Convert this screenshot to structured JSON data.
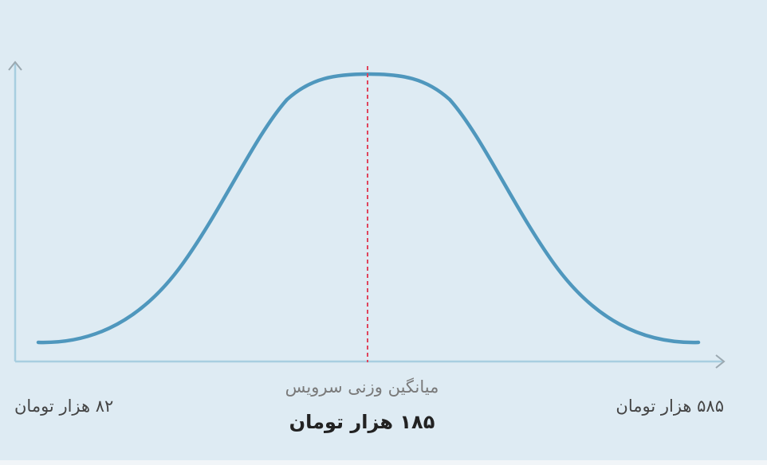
{
  "labels": {
    "min": "۸۲ هزار تومان",
    "caption": "میانگین وزنی سرویس",
    "average": "۱۸۵ هزار تومان",
    "max": "۵۸۵ هزار تومان"
  }
}
